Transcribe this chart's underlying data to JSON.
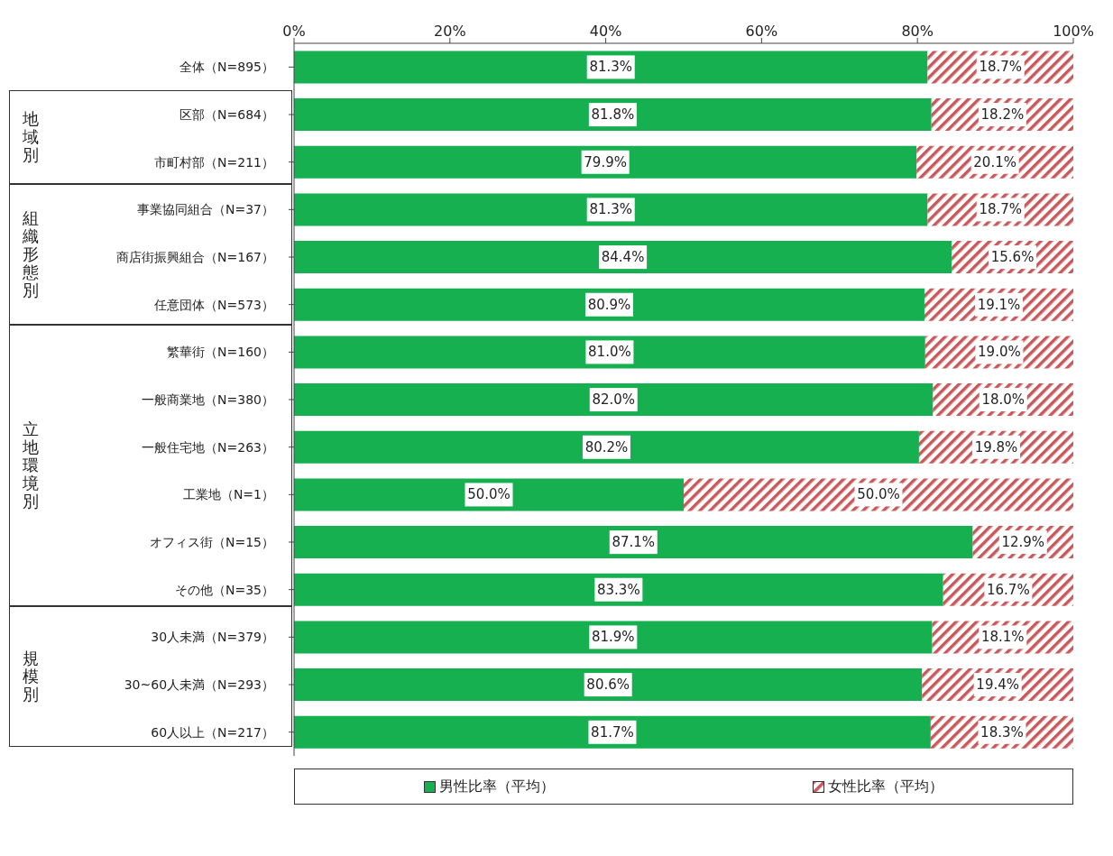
{
  "chart_data": {
    "type": "bar",
    "orientation": "horizontal",
    "stacked": true,
    "categories": [
      "全体（N=895）",
      "区部（N=684）",
      "市町村部（N=211）",
      "事業協同組合（N=37）",
      "商店街振興組合（N=167）",
      "任意団体（N=573）",
      "繁華街（N=160）",
      "一般商業地（N=380）",
      "一般住宅地（N=263）",
      "工業地（N=1）",
      "オフィス街（N=15）",
      "その他（N=35）",
      "30人未満（N=379）",
      "30~60人未満（N=293）",
      "60人以上（N=217）"
    ],
    "series": [
      {
        "name": "男性比率（平均）",
        "color": "#17b050",
        "values": [
          81.3,
          81.8,
          79.9,
          81.3,
          84.4,
          80.9,
          81.0,
          82.0,
          80.2,
          50.0,
          87.1,
          83.3,
          81.9,
          80.6,
          81.7
        ],
        "value_labels": [
          "81.3%",
          "81.8%",
          "79.9%",
          "81.3%",
          "84.4%",
          "80.9%",
          "81.0%",
          "82.0%",
          "80.2%",
          "50.0%",
          "87.1%",
          "83.3%",
          "81.9%",
          "80.6%",
          "81.7%"
        ]
      },
      {
        "name": "女性比率（平均）",
        "color": "#c9585a",
        "values": [
          18.7,
          18.2,
          20.1,
          18.7,
          15.6,
          19.1,
          19.0,
          18.0,
          19.8,
          50.0,
          12.9,
          16.7,
          18.1,
          19.4,
          18.3
        ],
        "value_labels": [
          "18.7%",
          "18.2%",
          "20.1%",
          "18.7%",
          "15.6%",
          "19.1%",
          "19.0%",
          "18.0%",
          "19.8%",
          "50.0%",
          "12.9%",
          "16.7%",
          "18.1%",
          "19.4%",
          "18.3%"
        ]
      }
    ],
    "xlim": [
      0,
      100
    ],
    "xticks": [
      {
        "value": 0,
        "label": "0%"
      },
      {
        "value": 20,
        "label": "20%"
      },
      {
        "value": 40,
        "label": "40%"
      },
      {
        "value": 60,
        "label": "60%"
      },
      {
        "value": 80,
        "label": "80%"
      },
      {
        "value": 100,
        "label": "100%"
      }
    ],
    "annotations": [
      "地域別",
      "組織形態別",
      "立地環境別",
      "規模別"
    ],
    "legend": "bottom",
    "grid": false
  }
}
